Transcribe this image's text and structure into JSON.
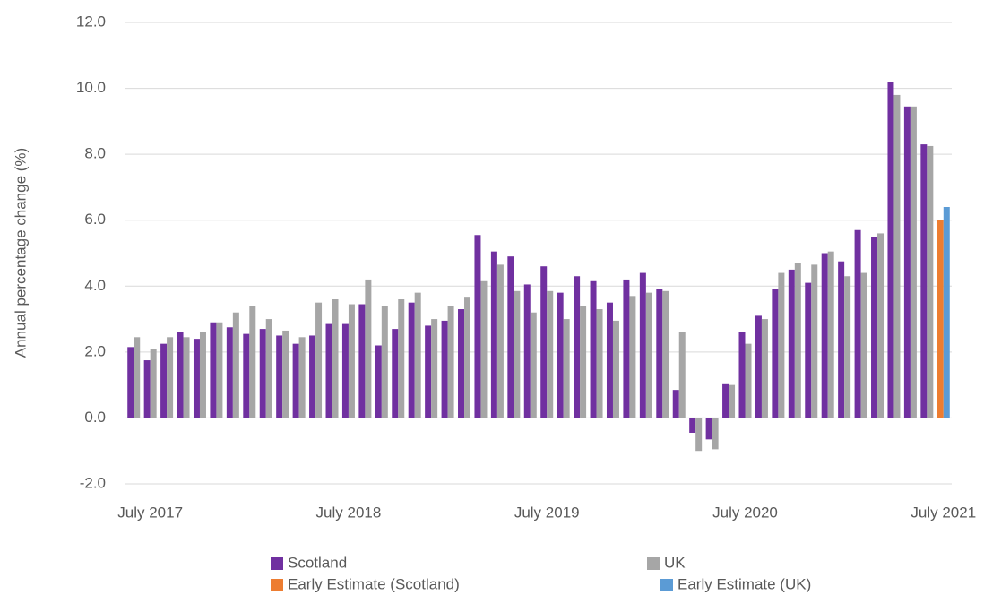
{
  "chart_data": {
    "type": "bar",
    "y_label": "Annual percentage change (%)",
    "categories": [
      null,
      "July 2017",
      null,
      null,
      null,
      null,
      null,
      null,
      null,
      null,
      null,
      null,
      null,
      "July 2018",
      null,
      null,
      null,
      null,
      null,
      null,
      null,
      null,
      null,
      null,
      null,
      "July 2019",
      null,
      null,
      null,
      null,
      null,
      null,
      null,
      null,
      null,
      null,
      null,
      "July 2020",
      null,
      null,
      null,
      null,
      null,
      null,
      null,
      null,
      null,
      null,
      null,
      "July 2021"
    ],
    "series": [
      {
        "name": "Scotland",
        "color": "#7030a0",
        "values": [
          2.15,
          1.75,
          2.25,
          2.6,
          2.4,
          2.9,
          2.75,
          2.55,
          2.7,
          2.5,
          2.25,
          2.5,
          2.85,
          2.85,
          3.45,
          2.2,
          2.7,
          3.5,
          2.8,
          2.95,
          3.3,
          5.55,
          5.05,
          4.9,
          4.05,
          4.6,
          3.8,
          4.3,
          4.15,
          3.5,
          4.2,
          4.4,
          3.9,
          0.85,
          -0.45,
          -0.65,
          1.05,
          2.6,
          3.1,
          3.9,
          4.5,
          4.1,
          5.0,
          4.75,
          5.7,
          5.5,
          10.2,
          9.45,
          8.3,
          null
        ]
      },
      {
        "name": "UK",
        "color": "#a6a6a6",
        "values": [
          2.45,
          2.1,
          2.45,
          2.45,
          2.6,
          2.9,
          3.2,
          3.4,
          3.0,
          2.65,
          2.45,
          3.5,
          3.6,
          3.45,
          4.2,
          3.4,
          3.6,
          3.8,
          3.0,
          3.4,
          3.65,
          4.15,
          4.65,
          3.85,
          3.2,
          3.85,
          3.0,
          3.4,
          3.3,
          2.95,
          3.7,
          3.8,
          3.85,
          2.6,
          -1.0,
          -0.95,
          1.0,
          2.25,
          3.0,
          4.4,
          4.7,
          4.65,
          5.05,
          4.3,
          4.4,
          5.6,
          9.8,
          9.45,
          8.25,
          null
        ]
      },
      {
        "name": "Early Estimate (Scotland)",
        "color": "#ed7d31",
        "values": [
          null,
          null,
          null,
          null,
          null,
          null,
          null,
          null,
          null,
          null,
          null,
          null,
          null,
          null,
          null,
          null,
          null,
          null,
          null,
          null,
          null,
          null,
          null,
          null,
          null,
          null,
          null,
          null,
          null,
          null,
          null,
          null,
          null,
          null,
          null,
          null,
          null,
          null,
          null,
          null,
          null,
          null,
          null,
          null,
          null,
          null,
          null,
          null,
          null,
          6.0
        ]
      },
      {
        "name": "Early Estimate (UK)",
        "color": "#5b9bd5",
        "values": [
          null,
          null,
          null,
          null,
          null,
          null,
          null,
          null,
          null,
          null,
          null,
          null,
          null,
          null,
          null,
          null,
          null,
          null,
          null,
          null,
          null,
          null,
          null,
          null,
          null,
          null,
          null,
          null,
          null,
          null,
          null,
          null,
          null,
          null,
          null,
          null,
          null,
          null,
          null,
          null,
          null,
          null,
          null,
          null,
          null,
          null,
          null,
          null,
          null,
          6.4
        ]
      }
    ],
    "ylim": [
      -2,
      12
    ],
    "yticks": [
      {
        "value": -2,
        "label": "-2.0"
      },
      {
        "value": 0,
        "label": "0.0"
      },
      {
        "value": 2,
        "label": "2.0"
      },
      {
        "value": 4,
        "label": "4.0"
      },
      {
        "value": 6,
        "label": "6.0"
      },
      {
        "value": 8,
        "label": "8.0"
      },
      {
        "value": 10,
        "label": "10.0"
      },
      {
        "value": 12,
        "label": "12.0"
      }
    ],
    "grid": true,
    "legend": "bottom"
  }
}
